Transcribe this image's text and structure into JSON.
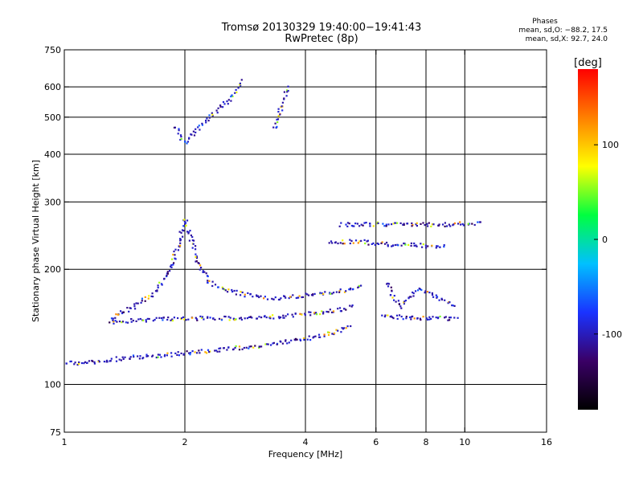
{
  "chart_data": {
    "type": "scatter",
    "title": "Tromsø 20130329 19:40:00−19:41:43",
    "subtitle": "RwPretec (8p)",
    "xlabel": "Frequency [MHz]",
    "ylabel": "Stationary phase Virtual Height [km]",
    "x_scale": "log",
    "y_scale": "log",
    "xlim": [
      1,
      16
    ],
    "ylim": [
      75,
      750
    ],
    "x_ticks": [
      1,
      2,
      4,
      6,
      8,
      10,
      16
    ],
    "y_ticks": [
      75,
      100,
      200,
      300,
      400,
      500,
      600,
      750
    ],
    "x_grid": [
      2,
      4,
      6,
      8,
      10
    ],
    "y_grid": [
      100,
      200,
      300,
      400,
      500,
      600
    ],
    "grid": true,
    "phase_stats": {
      "title": "Phases",
      "o_mode": "mean, sd,O: −88.2, 17.5",
      "x_mode": "mean, sd,X:  92.7, 24.0"
    },
    "colorbar": {
      "label": "[deg]",
      "ticks": [
        100,
        0,
        -100
      ],
      "range": [
        -180,
        180
      ],
      "colors": [
        "#000000",
        "#3a0066",
        "#1a33ff",
        "#00c0ff",
        "#00ff40",
        "#ffff00",
        "#ff8000",
        "#ff0000"
      ]
    },
    "traces": [
      {
        "name": "",
        "points": [
          [
            1.0,
            115
          ],
          [
            1.1,
            113
          ],
          [
            1.3,
            116
          ],
          [
            1.5,
            118
          ],
          [
            1.7,
            119
          ],
          [
            1.9,
            120
          ],
          [
            2.0,
            121
          ],
          [
            2.3,
            122
          ],
          [
            2.6,
            124
          ],
          [
            3.0,
            126
          ],
          [
            3.4,
            128
          ],
          [
            3.8,
            131
          ],
          [
            4.2,
            133
          ],
          [
            4.6,
            136
          ],
          [
            5.0,
            140
          ],
          [
            5.2,
            142
          ]
        ]
      },
      {
        "name": "",
        "points": [
          [
            1.3,
            145
          ],
          [
            1.5,
            147
          ],
          [
            1.7,
            148
          ],
          [
            1.9,
            148
          ],
          [
            2.2,
            149
          ],
          [
            2.6,
            149
          ],
          [
            3.0,
            150
          ],
          [
            3.4,
            150
          ],
          [
            3.8,
            152
          ],
          [
            4.3,
            154
          ],
          [
            4.8,
            156
          ],
          [
            5.3,
            160
          ]
        ]
      },
      {
        "name": "",
        "points": [
          [
            1.3,
            148
          ],
          [
            1.5,
            160
          ],
          [
            1.7,
            175
          ],
          [
            1.85,
            205
          ],
          [
            1.95,
            240
          ],
          [
            2.0,
            270
          ],
          [
            2.05,
            250
          ],
          [
            2.15,
            210
          ],
          [
            2.3,
            185
          ],
          [
            2.6,
            175
          ],
          [
            3.0,
            170
          ],
          [
            3.4,
            168
          ],
          [
            3.8,
            170
          ],
          [
            4.3,
            172
          ],
          [
            5.0,
            176
          ],
          [
            5.6,
            180
          ]
        ]
      },
      {
        "name": "",
        "points": [
          [
            1.9,
            470
          ],
          [
            1.95,
            440
          ],
          [
            2.0,
            430
          ],
          [
            2.1,
            450
          ],
          [
            2.2,
            480
          ],
          [
            2.3,
            500
          ],
          [
            2.4,
            520
          ],
          [
            2.5,
            540
          ],
          [
            2.6,
            560
          ],
          [
            2.7,
            590
          ],
          [
            2.8,
            625
          ]
        ]
      },
      {
        "name": "",
        "points": [
          [
            3.35,
            465
          ],
          [
            3.4,
            490
          ],
          [
            3.45,
            515
          ],
          [
            3.5,
            540
          ],
          [
            3.55,
            570
          ],
          [
            3.6,
            605
          ]
        ]
      },
      {
        "name": "",
        "points": [
          [
            4.9,
            262
          ],
          [
            5.2,
            262
          ],
          [
            5.5,
            263
          ],
          [
            6.3,
            262
          ],
          [
            7.0,
            262
          ],
          [
            8.0,
            262
          ],
          [
            9.0,
            262
          ],
          [
            10.0,
            263
          ],
          [
            11.0,
            263
          ]
        ]
      },
      {
        "name": "",
        "points": [
          [
            4.6,
            236
          ],
          [
            5.0,
            236
          ],
          [
            5.5,
            236
          ],
          [
            6.6,
            232
          ],
          [
            7.5,
            231
          ],
          [
            8.5,
            230
          ],
          [
            9.0,
            229
          ]
        ]
      },
      {
        "name": "",
        "points": [
          [
            6.2,
            150
          ],
          [
            7.0,
            150
          ],
          [
            8.0,
            149
          ],
          [
            9.0,
            149
          ],
          [
            9.6,
            148
          ]
        ]
      },
      {
        "name": "",
        "points": [
          [
            6.4,
            185
          ],
          [
            6.6,
            170
          ],
          [
            7.0,
            160
          ],
          [
            7.6,
            178
          ],
          [
            8.2,
            172
          ],
          [
            9.0,
            165
          ],
          [
            9.5,
            160
          ]
        ]
      }
    ]
  }
}
